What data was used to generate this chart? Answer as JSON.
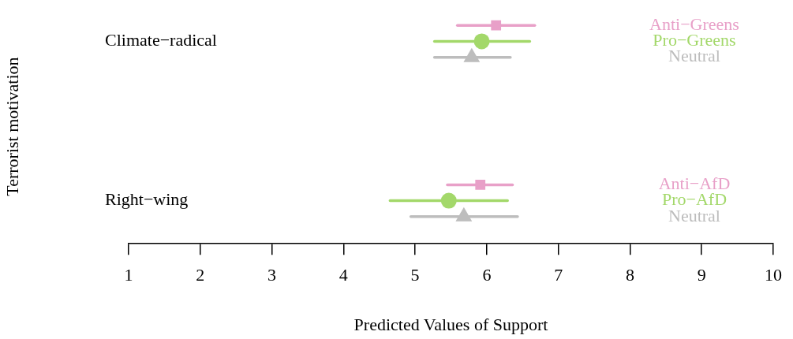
{
  "chart_data": {
    "type": "scatter",
    "orientation": "horizontal",
    "xlabel": "Predicted Values of Support",
    "ylabel": "Terrorist motivation",
    "categories": [
      "Climate−radical",
      "Right−wing"
    ],
    "xlim": [
      1,
      10
    ],
    "xticks": [
      1,
      2,
      3,
      4,
      5,
      6,
      7,
      8,
      9,
      10
    ],
    "grid": false,
    "series": [
      {
        "name": "Anti−Greens",
        "color": "#e8a0c8",
        "marker": "square",
        "values": [
          6.13,
          null
        ],
        "errors": [
          [
            5.59,
            6.67
          ],
          null
        ]
      },
      {
        "name": "Pro−Greens",
        "color": "#a3d86a",
        "marker": "circle",
        "values": [
          5.93,
          null
        ],
        "errors": [
          [
            5.27,
            6.6
          ],
          null
        ]
      },
      {
        "name": "Neutral",
        "color": "#bdbdbd",
        "marker": "triangle",
        "values": [
          5.79,
          null
        ],
        "errors": [
          [
            5.27,
            6.33
          ],
          null
        ]
      },
      {
        "name": "Anti−AfD",
        "color": "#e8a0c8",
        "marker": "square",
        "values": [
          null,
          5.91
        ],
        "errors": [
          null,
          [
            5.45,
            6.36
          ]
        ]
      },
      {
        "name": "Pro−AfD",
        "color": "#a3d86a",
        "marker": "circle",
        "values": [
          null,
          5.47
        ],
        "errors": [
          null,
          [
            4.65,
            6.29
          ]
        ]
      },
      {
        "name": "Neutral",
        "color": "#bdbdbd",
        "marker": "triangle",
        "values": [
          null,
          5.68
        ],
        "errors": [
          null,
          [
            4.94,
            6.43
          ]
        ]
      }
    ]
  }
}
